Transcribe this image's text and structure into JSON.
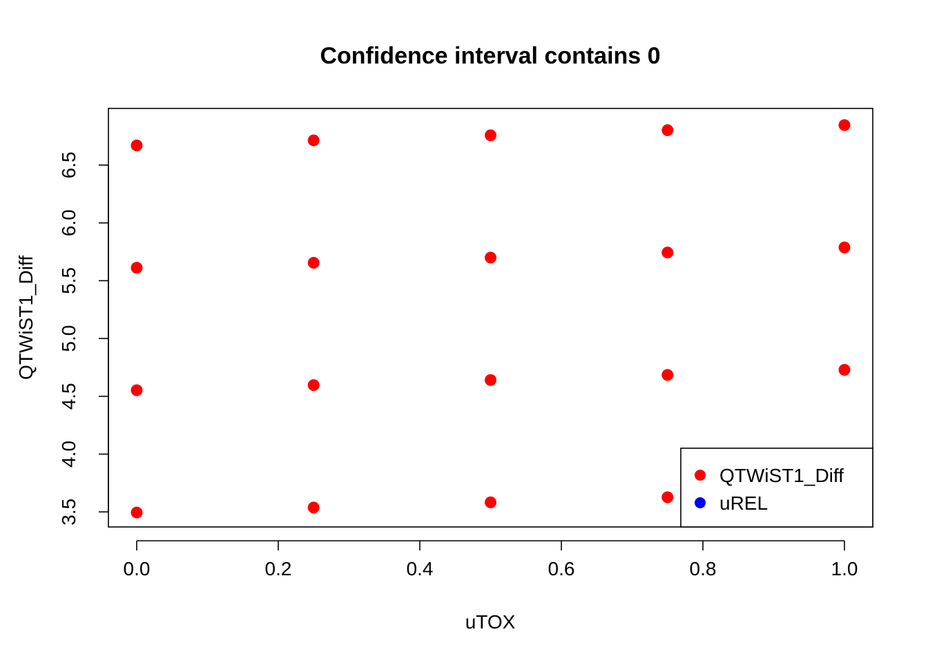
{
  "chart_data": {
    "type": "scatter",
    "title": "Confidence interval contains 0",
    "xlabel": "uTOX",
    "ylabel": "QTWiST1_Diff",
    "xlim": [
      -0.04,
      1.04
    ],
    "ylim": [
      3.37,
      6.99
    ],
    "x_ticks": [
      0.0,
      0.2,
      0.4,
      0.6,
      0.8,
      1.0
    ],
    "x_tick_labels": [
      "0.0",
      "0.2",
      "0.4",
      "0.6",
      "0.8",
      "1.0"
    ],
    "y_ticks": [
      3.5,
      4.0,
      4.5,
      5.0,
      5.5,
      6.0,
      6.5
    ],
    "y_tick_labels": [
      "3.5",
      "4.0",
      "4.5",
      "5.0",
      "5.5",
      "6.0",
      "6.5"
    ],
    "grid": false,
    "legend_position": "bottom-right",
    "series": [
      {
        "name": "QTWiST1_Diff",
        "color": "#ff0000",
        "points": [
          {
            "x": 0.0,
            "y": 3.495
          },
          {
            "x": 0.25,
            "y": 3.538
          },
          {
            "x": 0.5,
            "y": 3.583
          },
          {
            "x": 0.75,
            "y": 3.627
          },
          {
            "x": 1.0,
            "y": 3.672
          },
          {
            "x": 0.0,
            "y": 4.553
          },
          {
            "x": 0.25,
            "y": 4.597
          },
          {
            "x": 0.5,
            "y": 4.641
          },
          {
            "x": 0.75,
            "y": 4.685
          },
          {
            "x": 1.0,
            "y": 4.729
          },
          {
            "x": 0.0,
            "y": 5.612
          },
          {
            "x": 0.25,
            "y": 5.655
          },
          {
            "x": 0.5,
            "y": 5.7
          },
          {
            "x": 0.75,
            "y": 5.744
          },
          {
            "x": 1.0,
            "y": 5.788
          },
          {
            "x": 0.0,
            "y": 6.67
          },
          {
            "x": 0.25,
            "y": 6.714
          },
          {
            "x": 0.5,
            "y": 6.758
          },
          {
            "x": 0.75,
            "y": 6.802
          },
          {
            "x": 1.0,
            "y": 6.846
          }
        ]
      },
      {
        "name": "uREL",
        "color": "#0000ff",
        "points": []
      }
    ]
  }
}
